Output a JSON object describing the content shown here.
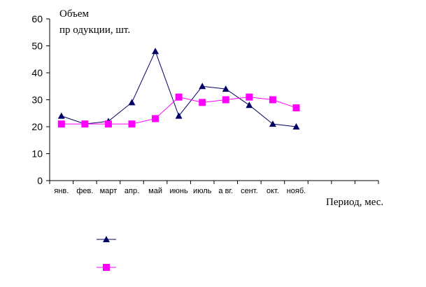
{
  "chart_data": {
    "type": "line",
    "ylabel_line1": "Объем",
    "ylabel_line2": "пр одукции, шт.",
    "xlabel": "Период, мес.",
    "ylim": [
      0,
      60
    ],
    "yticks": [
      0,
      10,
      20,
      30,
      40,
      50,
      60
    ],
    "categories": [
      "янв.",
      "фев.",
      "март",
      "апр.",
      "май",
      "июнь",
      "июль",
      "а вг.",
      "сент.",
      "окт.",
      "нояб."
    ],
    "slots": 14,
    "series": [
      {
        "color": "#000066",
        "marker": "triangle",
        "values": [
          24,
          21,
          22,
          29,
          48,
          24,
          35,
          34,
          28,
          21,
          20
        ]
      },
      {
        "color": "#ff00ff",
        "marker": "square",
        "values": [
          21,
          21,
          21,
          21,
          23,
          31,
          29,
          30,
          31,
          30,
          27
        ]
      }
    ],
    "legend_placement": "bottom-left"
  }
}
